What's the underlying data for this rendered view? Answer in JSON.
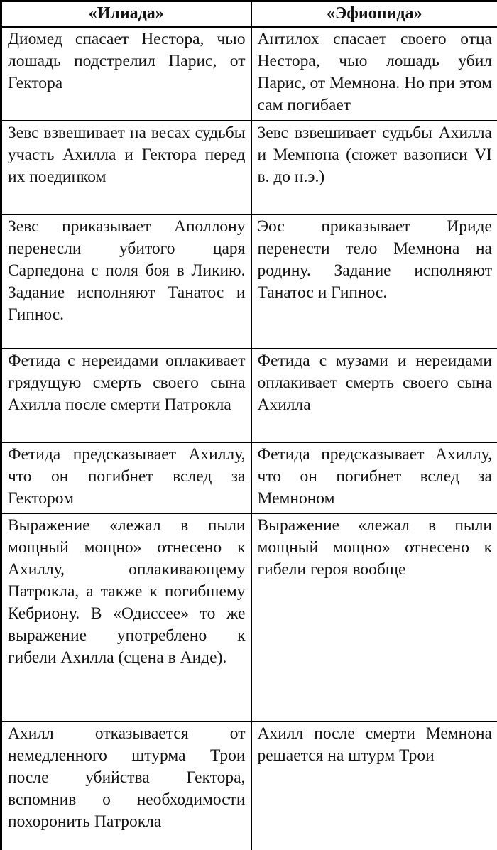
{
  "document": {
    "language": "ru",
    "background_color": "#ffffff",
    "text_color": "#151515",
    "border_color": "#000000"
  },
  "table": {
    "headers": [
      {
        "label": "«Илиада»"
      },
      {
        "label": "«Эфиопида»"
      }
    ],
    "rows": [
      {
        "iliada": "Диомед спасает Нестора, чью лошадь подстрелил Парис, от Гектора",
        "efiopida": "Антилох спасает своего отца Нестора, чью лошадь убил Парис, от Мемнона. Но при этом сам погибает"
      },
      {
        "iliada": "Зевс взвешивает на весах судьбы участь Ахилла и Гектора перед их поединком",
        "efiopida": "Зевс взвешивает судьбы Ахилла и Мемнона (сюжет вазописи VI в. до н.э.)"
      },
      {
        "iliada": "Зевс приказывает Аполлону перенесли убитого царя Сарпедона с поля боя в Ликию. Задание исполняют Танатос и Гипнос.",
        "efiopida": "Эос приказывает Ириде перенести тело Мемнона на родину. Задание исполняют Танатос и Гипнос."
      },
      {
        "iliada": "Фетида с нереидами оплакивает грядущую смерть своего сына Ахилла после смерти Патрокла",
        "efiopida": "Фетида с музами и нереидами оплакивает смерть своего сына Ахилла"
      },
      {
        "iliada": "Фетида предсказывает Ахиллу, что он погибнет вслед за Гектором",
        "efiopida": "Фетида предсказывает Ахиллу, что он погибнет вслед за Мемноном"
      },
      {
        "iliada": "Выражение «лежал в пыли мощный мощно» отнесено к Ахиллу, оплакивающему Патрокла, а также к погибшему Кебриону. В «Одиссее» то же выражение употреблено к гибели Ахилла (сцена в Аиде).",
        "efiopida": "Выражение «лежал в пыли мощный мощно» отнесено к гибели героя вообще"
      },
      {
        "iliada": "Ахилл отказывается от немедленного штурма Трои после убийства Гектора, вспомнив о необходимости похоронить Патрокла",
        "efiopida": "Ахилл после смерти Мемнона решается на штурм Трои"
      }
    ]
  }
}
